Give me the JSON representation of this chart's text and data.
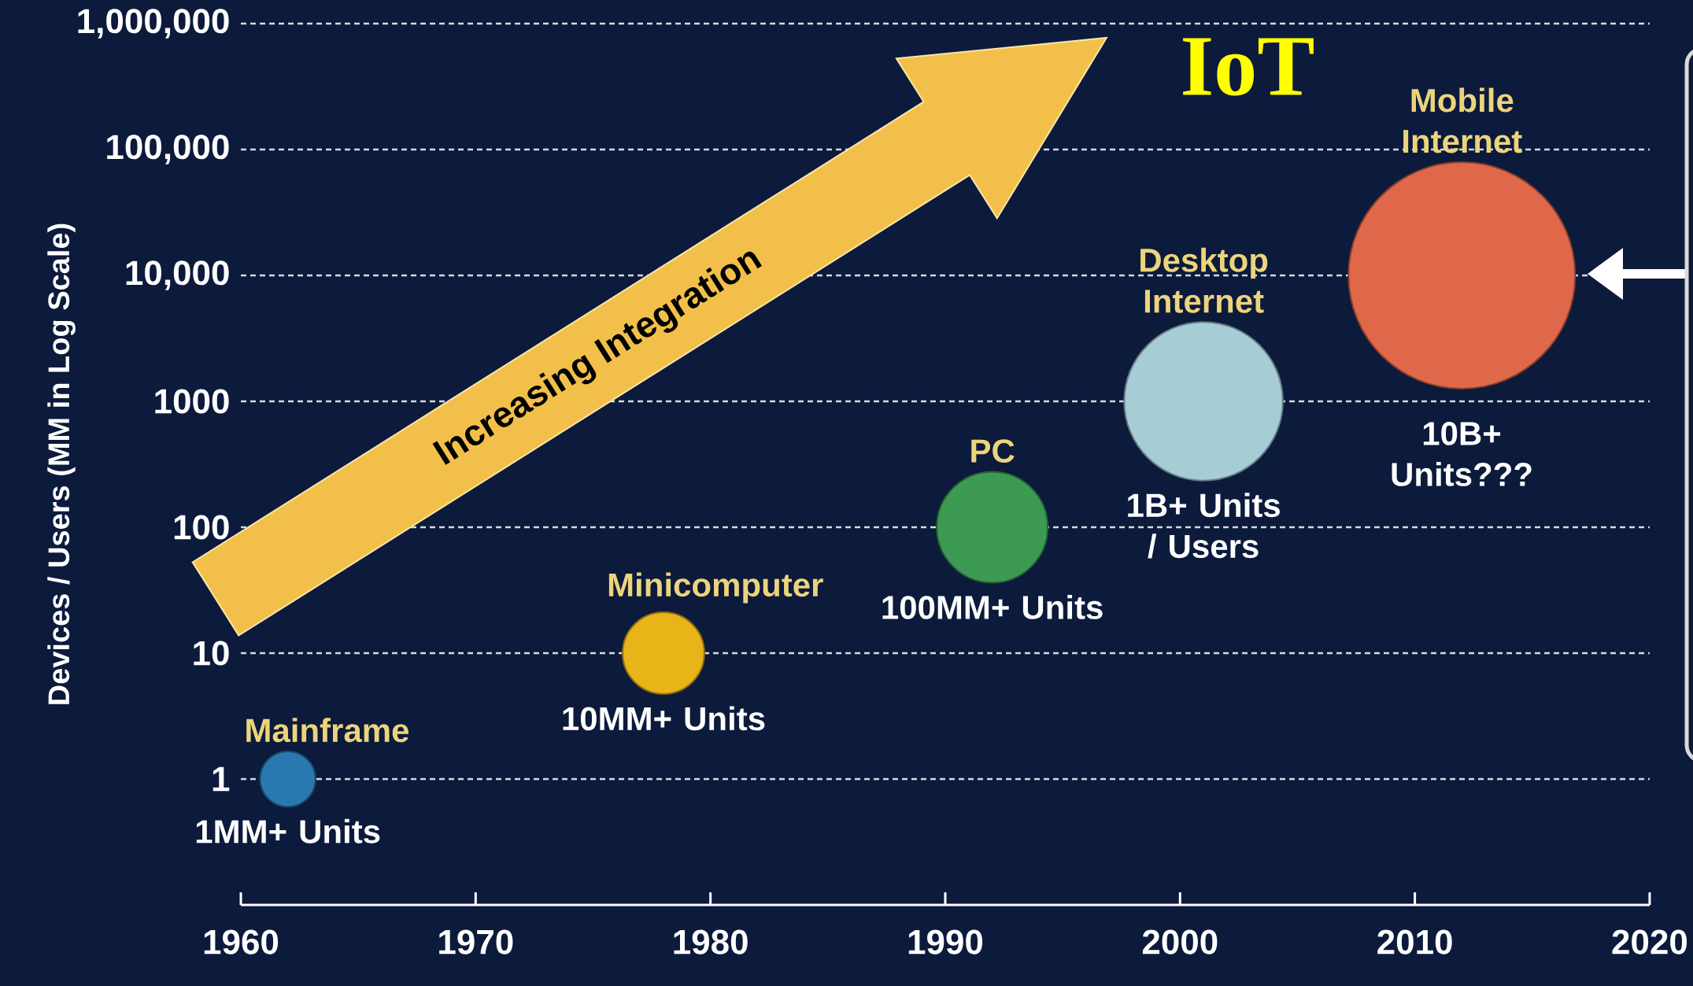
{
  "chart_data": {
    "type": "bubble",
    "ylabel": "Devices / Users (MM in Log Scale)",
    "log": "y",
    "grid": "y",
    "marker": "circle",
    "xlim": [
      1960,
      2020
    ],
    "xticks": [
      1960,
      1970,
      1980,
      1990,
      2000,
      2010,
      2020
    ],
    "ylim": [
      0.1,
      1000000
    ],
    "yticks": [
      1,
      10,
      100,
      1000,
      {
        "value": 10000,
        "label": "10,000"
      },
      {
        "value": 100000,
        "label": "100,000"
      },
      {
        "value": 1000000,
        "label": "1,000,000"
      }
    ],
    "series": [
      {
        "name": "Mainframe",
        "color": "#2a78b0",
        "x": [
          1962
        ],
        "values": [
          1
        ],
        "sizes": [
          0.06
        ]
      },
      {
        "name": "Minicomputer",
        "color": "#e8b418",
        "x": [
          1978
        ],
        "values": [
          10
        ],
        "sizes": [
          0.13
        ]
      },
      {
        "name": "PC",
        "color": "#3c9a52",
        "x": [
          1992
        ],
        "values": [
          100
        ],
        "sizes": [
          0.24
        ]
      },
      {
        "name": "Desktop Internet",
        "color": "#a6ccd6",
        "x": [
          2001
        ],
        "values": [
          1000
        ],
        "sizes": [
          0.49
        ]
      },
      {
        "name": "Mobile Internet",
        "color": "#e0684a",
        "x": [
          2012
        ],
        "values": [
          10000
        ],
        "sizes": [
          1
        ]
      }
    ],
    "annotations": [
      "Increasing Integration",
      "IoT",
      {
        "text": "1MM+ Units",
        "x": 1962,
        "y": 1
      },
      {
        "text": "10MM+ Units",
        "x": 1978,
        "y": 10
      },
      {
        "text": "100MM+ Units",
        "x": 1992,
        "y": 100
      },
      {
        "text": "1B+ Units / Users",
        "x": 2001,
        "y": 1000
      },
      "10B+ Units???"
    ]
  }
}
